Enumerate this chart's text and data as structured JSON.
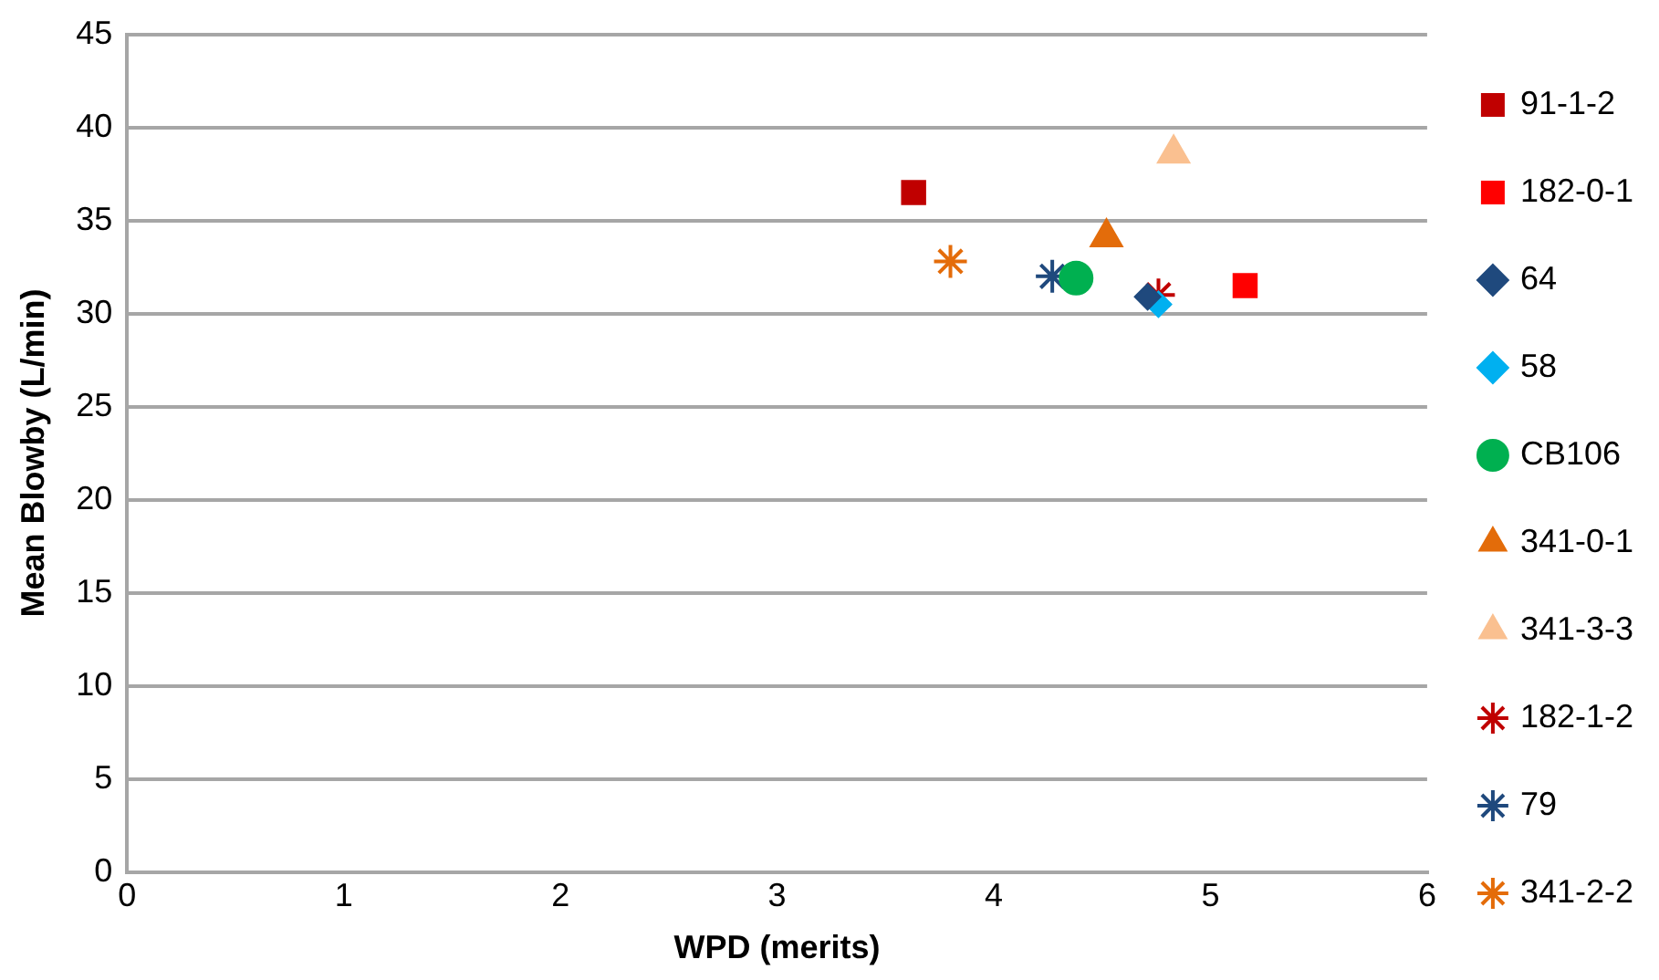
{
  "chart_data": {
    "type": "scatter",
    "xlabel": "WPD (merits)",
    "ylabel": "Mean Blowby (L/min)",
    "xlim": [
      0,
      6
    ],
    "xticks": [
      0,
      1,
      2,
      3,
      4,
      5,
      6
    ],
    "ylim": [
      0,
      45
    ],
    "yticks": [
      0,
      5,
      10,
      15,
      20,
      25,
      30,
      35,
      40,
      45
    ],
    "grid": "y",
    "legend": "right",
    "series": [
      {
        "name": "91-1-2",
        "color": "#c00000",
        "marker": "square",
        "x": [
          3.63
        ],
        "values": [
          36.5
        ]
      },
      {
        "name": "182-0-1",
        "color": "#ff0000",
        "marker": "square",
        "x": [
          5.16
        ],
        "values": [
          31.5
        ]
      },
      {
        "name": "64",
        "color": "#1f497d",
        "marker": "diamond",
        "x": [
          4.71
        ],
        "values": [
          30.9
        ]
      },
      {
        "name": "58",
        "color": "#00b0f0",
        "marker": "diamond",
        "x": [
          4.76
        ],
        "values": [
          30.5
        ]
      },
      {
        "name": "CB106",
        "color": "#00b050",
        "marker": "circle",
        "x": [
          4.38
        ],
        "values": [
          31.9
        ]
      },
      {
        "name": "341-0-1",
        "color": "#e36c0a",
        "marker": "triangle",
        "x": [
          4.52
        ],
        "values": [
          34.1
        ]
      },
      {
        "name": "341-3-3",
        "color": "#fac090",
        "marker": "triangle",
        "x": [
          4.83
        ],
        "values": [
          38.6
        ]
      },
      {
        "name": "182-1-2",
        "color": "#c00000",
        "marker": "cross",
        "x": [
          4.76
        ],
        "values": [
          31.0
        ]
      },
      {
        "name": "79",
        "color": "#1f497d",
        "marker": "cross",
        "x": [
          4.27
        ],
        "values": [
          32.0
        ]
      },
      {
        "name": "341-2-2",
        "color": "#e46c0a",
        "marker": "cross",
        "x": [
          3.8
        ],
        "values": [
          32.8
        ]
      }
    ]
  }
}
